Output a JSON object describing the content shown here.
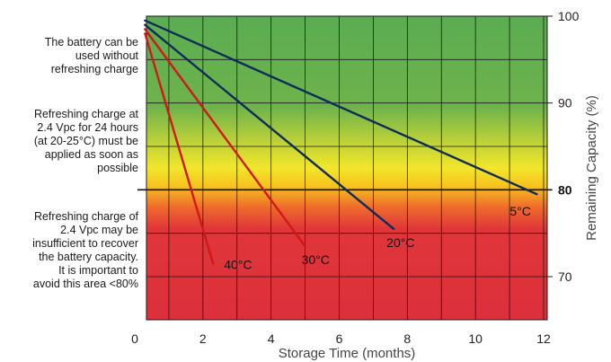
{
  "notes": [
    "The battery can be\nused without\nrefreshing charge",
    "Refreshing charge at\n2.4 Vpc for 24 hours\n(at 20-25°C) must be\napplied as soon as\npossible",
    "Refreshing charge of\n2.4 Vpc may be\ninsufficient to  recover\nthe battery capacity.\nIt is important to\navoid this area <80%"
  ],
  "chart_data": {
    "type": "line",
    "xlabel": "Storage Time (months)",
    "ylabel": "Remaining Capacity (%)",
    "xlim": [
      0,
      12
    ],
    "ylim": [
      65,
      100
    ],
    "x_ticks": [
      "0",
      "2",
      "4",
      "6",
      "8",
      "10",
      "12"
    ],
    "y_ticks": [
      "70",
      "80",
      "90",
      "100"
    ],
    "threshold_label": "80",
    "threshold_value": 80,
    "grid": true,
    "background_zones": [
      "green",
      "yellow",
      "red"
    ],
    "series": [
      {
        "name": "5°C",
        "color": "#0d2c5a",
        "points": [
          [
            0.3,
            99.5
          ],
          [
            11.8,
            79.5
          ]
        ]
      },
      {
        "name": "20°C",
        "color": "#0d2c5a",
        "points": [
          [
            0.3,
            99
          ],
          [
            7.6,
            75.5
          ]
        ]
      },
      {
        "name": "30°C",
        "color": "#d01818",
        "points": [
          [
            0.3,
            98.5
          ],
          [
            5.0,
            73.5
          ]
        ]
      },
      {
        "name": "40°C",
        "color": "#d01818",
        "points": [
          [
            0.3,
            98
          ],
          [
            2.3,
            71.5
          ]
        ]
      }
    ]
  }
}
